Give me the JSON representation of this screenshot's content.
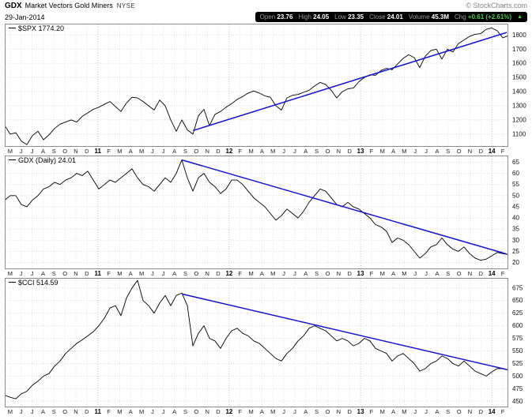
{
  "header": {
    "symbol": "GDX",
    "name": "Market Vectors Gold Miners",
    "exchange": "NYSE",
    "date": "29-Jan-2014",
    "copyright": "© StockCharts.com",
    "arrow": "▲",
    "quote": [
      {
        "label": "Open",
        "value": "23.76"
      },
      {
        "label": "High",
        "value": "24.05"
      },
      {
        "label": "Low",
        "value": "23.35"
      },
      {
        "label": "Close",
        "value": "24.01"
      },
      {
        "label": "Volume",
        "value": "45.3M"
      },
      {
        "label": "Chg",
        "value": "+0.61 (+2.61%)",
        "direction": "up"
      }
    ]
  },
  "colors": {
    "series": "#000000",
    "trendline": "#1414cc",
    "grid_month": "#e6e6e6",
    "grid_year": "#c6c6c6",
    "grid_h": "#d9d9d9",
    "panel_border": "#8c8c8c",
    "quote_bar_bg": "#000000",
    "positive": "#4ccb4c"
  },
  "x_labels": [
    "M",
    "J",
    "J",
    "A",
    "S",
    "O",
    "N",
    "D",
    "11",
    "F",
    "M",
    "A",
    "M",
    "J",
    "J",
    "A",
    "S",
    "O",
    "N",
    "D",
    "12",
    "F",
    "M",
    "A",
    "M",
    "J",
    "J",
    "A",
    "S",
    "O",
    "N",
    "D",
    "13",
    "F",
    "M",
    "A",
    "M",
    "J",
    "J",
    "A",
    "S",
    "O",
    "N",
    "D",
    "14",
    "F"
  ],
  "year_indexes": [
    8,
    20,
    32,
    44
  ],
  "chart_data": [
    {
      "type": "line",
      "title": "$SPX 1774.20",
      "symbol": "$SPX",
      "last": 1774.2,
      "ylim": [
        1010,
        1880
      ],
      "yticks": [
        1800,
        1700,
        1600,
        1500,
        1400,
        1300,
        1200,
        1100
      ],
      "values": [
        1160,
        1100,
        1110,
        1050,
        1025,
        1090,
        1120,
        1060,
        1095,
        1140,
        1170,
        1185,
        1200,
        1185,
        1225,
        1250,
        1275,
        1290,
        1310,
        1330,
        1295,
        1260,
        1320,
        1360,
        1355,
        1330,
        1300,
        1270,
        1340,
        1300,
        1200,
        1120,
        1200,
        1130,
        1100,
        1230,
        1275,
        1160,
        1240,
        1260,
        1290,
        1315,
        1345,
        1365,
        1390,
        1405,
        1390,
        1370,
        1360,
        1300,
        1270,
        1355,
        1375,
        1380,
        1395,
        1410,
        1440,
        1465,
        1450,
        1410,
        1355,
        1400,
        1420,
        1425,
        1470,
        1500,
        1520,
        1515,
        1550,
        1565,
        1555,
        1595,
        1635,
        1660,
        1640,
        1570,
        1650,
        1690,
        1700,
        1630,
        1700,
        1680,
        1740,
        1765,
        1790,
        1805,
        1810,
        1840,
        1850,
        1830,
        1780,
        1795
      ],
      "trendline": {
        "x1": 0.374,
        "v1": 1125,
        "x2": 0.997,
        "v2": 1818,
        "color": "#1414cc",
        "direction": "up"
      }
    },
    {
      "type": "line",
      "title": "GDX (Daily) 24.01",
      "symbol": "GDX",
      "last": 24.01,
      "ylim": [
        17,
        68
      ],
      "yticks": [
        65,
        60,
        55,
        50,
        45,
        40,
        35,
        30,
        25,
        20
      ],
      "values": [
        48,
        50,
        50,
        46,
        45,
        48,
        50,
        53,
        54,
        56,
        55,
        57,
        58,
        60,
        59,
        61,
        57,
        53,
        55,
        57,
        56,
        58,
        60,
        62,
        58,
        55,
        54,
        52,
        55,
        58,
        56,
        60,
        66,
        58,
        52,
        58,
        60,
        56,
        54,
        51,
        53,
        57,
        57,
        55,
        52,
        49,
        47,
        45,
        42,
        39,
        41,
        44,
        42,
        40,
        43,
        47,
        50,
        53,
        52,
        49,
        46,
        45,
        47,
        45,
        44,
        42,
        40,
        37,
        36,
        34,
        29,
        31,
        30,
        28,
        25,
        22,
        24,
        27,
        28,
        31,
        28,
        26,
        25,
        27,
        24,
        22,
        21,
        21.5,
        23,
        24.5,
        24,
        23.5
      ],
      "trendline": {
        "x1": 0.352,
        "v1": 66,
        "x2": 0.997,
        "v2": 23.8,
        "color": "#1414cc",
        "direction": "down"
      }
    },
    {
      "type": "line",
      "title": "$CCI 514.59",
      "symbol": "$CCI",
      "last": 514.59,
      "ylim": [
        438,
        695
      ],
      "yticks": [
        675,
        650,
        625,
        600,
        575,
        550,
        525,
        500,
        475,
        450
      ],
      "values": [
        462,
        458,
        455,
        465,
        470,
        482,
        490,
        500,
        505,
        520,
        530,
        545,
        555,
        565,
        572,
        580,
        588,
        600,
        615,
        635,
        640,
        620,
        655,
        675,
        690,
        650,
        640,
        625,
        645,
        660,
        640,
        660,
        665,
        640,
        560,
        585,
        600,
        575,
        570,
        555,
        575,
        590,
        595,
        585,
        580,
        570,
        565,
        555,
        545,
        535,
        530,
        545,
        555,
        570,
        580,
        595,
        600,
        595,
        590,
        580,
        570,
        575,
        570,
        560,
        565,
        575,
        570,
        555,
        550,
        545,
        530,
        540,
        545,
        535,
        525,
        510,
        515,
        525,
        530,
        540,
        535,
        525,
        520,
        530,
        520,
        510,
        505,
        500,
        508,
        515,
        515,
        512
      ],
      "trendline": {
        "x1": 0.352,
        "v1": 663,
        "x2": 0.997,
        "v2": 513,
        "color": "#1414cc",
        "direction": "down"
      }
    }
  ]
}
